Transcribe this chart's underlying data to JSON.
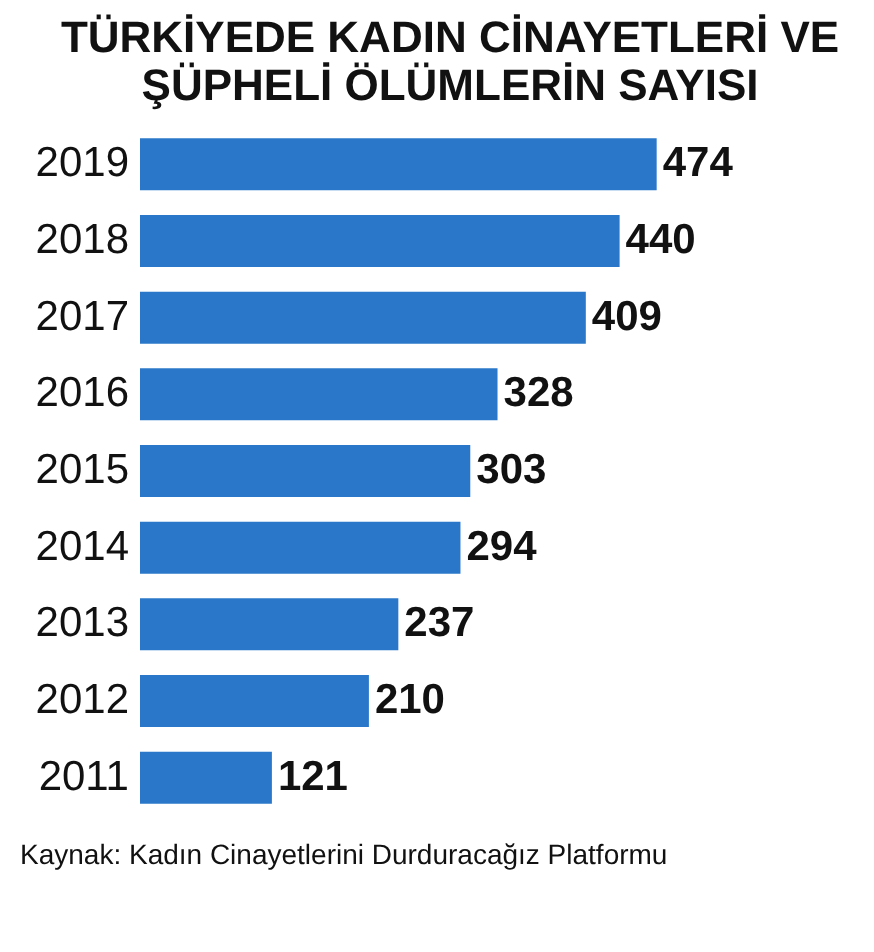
{
  "chart_data": {
    "type": "bar",
    "orientation": "horizontal",
    "data_labels": true,
    "title": "TÜRKİYEDE KADIN CİNAYETLERİ VE\nŞÜPHELİ ÖLÜMLERİN SAYISI",
    "categories": [
      "2019",
      "2018",
      "2017",
      "2016",
      "2015",
      "2014",
      "2013",
      "2012",
      "2011"
    ],
    "values": [
      474,
      440,
      409,
      328,
      303,
      294,
      237,
      210,
      121
    ],
    "color": "#2a77c9",
    "annotations": [
      "Kaynak: Kadın Cinayetlerini Durduracağız Platformu"
    ]
  }
}
